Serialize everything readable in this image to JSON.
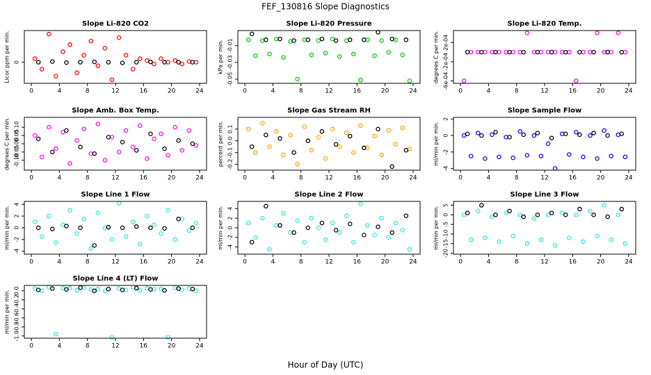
{
  "title": "FEF_130816  Slope Diagnostics",
  "xlabel": "Hour of Day (UTC)",
  "chart_data": [
    {
      "type": "scatter",
      "title": "Slope Li-820 CO2",
      "ylabel": "Licor ppm per min.",
      "xlim": [
        -1,
        25
      ],
      "xticks": [
        0,
        4,
        8,
        12,
        16,
        20,
        24
      ],
      "ylim": [
        -0.6,
        0.9
      ],
      "yticks": [
        0
      ],
      "series": [
        {
          "color": "#ff0000",
          "x": [
            0.5,
            1.5,
            2.5,
            3.5,
            4.5,
            5.5,
            6.5,
            7.5,
            8.5,
            9.5,
            10.5,
            11.5,
            12.5,
            13.5,
            14.5,
            15.5,
            16.5,
            17.5,
            18.5,
            19.5,
            20.5,
            21.5,
            22.5,
            23.5
          ],
          "values": [
            0.1,
            -0.2,
            0.8,
            -0.4,
            0.3,
            0.5,
            -0.3,
            0.2,
            0.6,
            -0.1,
            0.4,
            -0.5,
            0.7,
            0.2,
            -0.2,
            0.1,
            0.05,
            -0.05,
            0.1,
            0,
            0.05,
            -0.05,
            0.02,
            0
          ]
        },
        {
          "color": "#000000",
          "x": [
            1,
            3,
            5,
            7,
            9,
            11,
            13,
            15,
            17,
            19,
            21,
            23
          ],
          "values": [
            0,
            0.02,
            -0.01,
            0,
            0.01,
            0,
            -0.02,
            0,
            0.01,
            0,
            0,
            0
          ]
        }
      ]
    },
    {
      "type": "scatter",
      "title": "Slope Li-820 Pressure",
      "ylabel": "kPa per min.",
      "xlim": [
        -1,
        25
      ],
      "xticks": [
        0,
        4,
        8,
        12,
        16,
        20,
        24
      ],
      "ylim": [
        -0.055,
        0.008
      ],
      "yticks": [
        -0.05,
        -0.03,
        -0.01
      ],
      "series": [
        {
          "color": "#00cc00",
          "x": [
            0.5,
            1.5,
            2.5,
            3.5,
            4.5,
            5.5,
            6.5,
            7.5,
            8.5,
            9.5,
            10.5,
            11.5,
            12.5,
            13.5,
            14.5,
            15.5,
            16.5,
            17.5,
            18.5,
            19.5,
            20.5,
            21.5,
            22.5,
            23.5
          ],
          "values": [
            -0.003,
            -0.022,
            -0.004,
            -0.02,
            -0.002,
            -0.024,
            -0.005,
            -0.05,
            -0.003,
            -0.021,
            -0.004,
            -0.019,
            -0.002,
            -0.023,
            -0.004,
            -0.02,
            -0.051,
            -0.003,
            -0.022,
            -0.004,
            -0.018,
            -0.003,
            -0.021,
            -0.052
          ]
        },
        {
          "color": "#000000",
          "x": [
            1,
            3,
            5,
            7,
            9,
            11,
            13,
            15,
            17,
            19,
            21,
            23
          ],
          "values": [
            0.004,
            -0.003,
            -0.002,
            -0.004,
            -0.003,
            -0.002,
            -0.004,
            -0.003,
            -0.003,
            0.006,
            -0.002,
            -0.003
          ]
        }
      ]
    },
    {
      "type": "scatter",
      "title": "Slope Li-820 Temp.",
      "ylabel": "degrees C per min.",
      "xlim": [
        -1,
        25
      ],
      "xticks": [
        0,
        4,
        8,
        12,
        16,
        20,
        24
      ],
      "ylim": [
        -0.00065,
        0.00045
      ],
      "yticks": [
        {
          "value": -0.0006,
          "label": "-6e-04"
        },
        {
          "value": -0.0002,
          "label": "-2e-04"
        },
        {
          "value": 0.0002,
          "label": "2e-04"
        }
      ],
      "series": [
        {
          "color": "#ff00ff",
          "x": [
            0.5,
            1.5,
            2.5,
            3.5,
            4.5,
            5.5,
            6.5,
            7.5,
            8.5,
            9.5,
            10.5,
            11.5,
            12.5,
            13.5,
            14.5,
            15.5,
            16.5,
            17.5,
            18.5,
            19.5,
            20.5,
            21.5,
            22.5,
            23.5
          ],
          "values": [
            -0.0006,
            0,
            0,
            0,
            0,
            0,
            0,
            0,
            0,
            0.0004,
            0,
            0,
            0,
            0,
            0,
            0,
            -0.0006,
            0,
            0,
            0.0004,
            0,
            0,
            0.0004,
            0
          ]
        },
        {
          "color": "#000000",
          "x": [
            1,
            3,
            5,
            7,
            9,
            11,
            13,
            15,
            17,
            19,
            21,
            23
          ],
          "values": [
            0,
            0,
            0,
            0,
            0,
            0,
            0,
            0,
            0,
            0,
            0,
            0
          ]
        }
      ]
    },
    {
      "type": "scatter",
      "title": "Slope Amb. Box Temp.",
      "ylabel": "degrees C per min.",
      "xlim": [
        -1,
        25
      ],
      "xticks": [
        0,
        4,
        8,
        12,
        16,
        20,
        24
      ],
      "ylim": [
        -0.16,
        0.16
      ],
      "yticks": [
        {
          "value": -0.1,
          "label": "-0.10"
        },
        {
          "value": -0.05,
          "label": "-0.05"
        },
        {
          "value": 0,
          "label": "0.00"
        },
        {
          "value": 0.05,
          "label": "0.05"
        },
        {
          "value": 0.1,
          "label": "0.10"
        }
      ],
      "series": [
        {
          "color": "#ff00ff",
          "x": [
            0.5,
            1.5,
            2.5,
            3.5,
            4.5,
            5.5,
            6.5,
            7.5,
            8.5,
            9.5,
            10.5,
            11.5,
            12.5,
            13.5,
            14.5,
            15.5,
            16.5,
            17.5,
            18.5,
            19.5,
            20.5,
            21.5,
            22.5,
            23.5
          ],
          "values": [
            0.05,
            -0.08,
            0.1,
            -0.03,
            0.07,
            -0.12,
            0.02,
            0.09,
            -0.06,
            0.12,
            -0.1,
            0.04,
            -0.05,
            0.08,
            -0.02,
            0.11,
            -0.09,
            0.03,
            0.06,
            -0.07,
            0.1,
            -0.04,
            0.08,
            -0.01
          ]
        },
        {
          "color": "#000000",
          "x": [
            1,
            3,
            5,
            7,
            9,
            11,
            13,
            15,
            17,
            19,
            21,
            23
          ],
          "values": [
            0.03,
            -0.05,
            0.08,
            -0.02,
            -0.06,
            0.04,
            0.01,
            -0.04,
            0.06,
            -0.03,
            0.02,
            0
          ]
        }
      ]
    },
    {
      "type": "scatter",
      "title": "Slope Gas Stream RH",
      "ylabel": "percent per min.",
      "xlim": [
        -1,
        25
      ],
      "xticks": [
        0,
        4,
        8,
        12,
        16,
        20,
        24
      ],
      "ylim": [
        -0.25,
        0.2
      ],
      "yticks": [
        -0.2,
        -0.1,
        {
          "value": 0,
          "label": "0.0"
        },
        0.1
      ],
      "series": [
        {
          "color": "#ffa500",
          "x": [
            0.5,
            1.5,
            2.5,
            3.5,
            4.5,
            5.5,
            6.5,
            7.5,
            8.5,
            9.5,
            10.5,
            11.5,
            12.5,
            13.5,
            14.5,
            15.5,
            16.5,
            17.5,
            18.5,
            19.5,
            20.5,
            21.5,
            22.5,
            23.5
          ],
          "values": [
            0.1,
            -0.1,
            0.15,
            -0.05,
            0.08,
            -0.12,
            0.05,
            -0.2,
            0.12,
            -0.08,
            0.03,
            -0.15,
            0.1,
            -0.05,
            0.07,
            -0.1,
            0.13,
            -0.06,
            0.04,
            -0.12,
            0.09,
            -0.03,
            0.11,
            -0.07
          ]
        },
        {
          "color": "#000000",
          "x": [
            1,
            3,
            5,
            7,
            9,
            11,
            13,
            15,
            17,
            19,
            21,
            23
          ],
          "values": [
            -0.05,
            0.05,
            0.02,
            -0.1,
            0,
            0.08,
            -0.03,
            0.04,
            -0.06,
            0.1,
            -0.22,
            -0.08
          ]
        }
      ]
    },
    {
      "type": "scatter",
      "title": "Slope Sample Flow",
      "ylabel": "ml/min per min.",
      "xlim": [
        -1,
        25
      ],
      "xticks": [
        0,
        4,
        8,
        12,
        16,
        20,
        24
      ],
      "ylim": [
        -4.2,
        2.2
      ],
      "yticks": [
        -4,
        -2,
        0,
        2
      ],
      "series": [
        {
          "color": "#0000ff",
          "x": [
            0.5,
            1.5,
            2.5,
            3.5,
            4.5,
            5.5,
            6.5,
            7.5,
            8.5,
            9.5,
            10.5,
            11.5,
            12.5,
            13.5,
            14.5,
            15.5,
            16.5,
            17.5,
            18.5,
            19.5,
            20.5,
            21.5,
            22.5,
            23.5
          ],
          "values": [
            0,
            -2.5,
            0.3,
            -2.8,
            0.1,
            -2.6,
            -0.2,
            -2.7,
            0.5,
            -2.4,
            0,
            -2.5,
            -1,
            -4,
            0.2,
            -2.3,
            0.4,
            -2.6,
            0,
            -2.8,
            0.6,
            -2.5,
            0.1,
            -2.6
          ]
        },
        {
          "color": "#000000",
          "x": [
            1,
            3,
            5,
            7,
            9,
            11,
            13,
            15,
            17,
            19,
            21,
            23
          ],
          "values": [
            0.2,
            0,
            0.4,
            -0.2,
            0.1,
            0.3,
            -0.3,
            0.2,
            0.1,
            0.3,
            0,
            0.2
          ]
        }
      ]
    },
    {
      "type": "scatter",
      "title": "Slope Line 1 Flow",
      "ylabel": "ml/min per min.",
      "xlim": [
        -1,
        25
      ],
      "xticks": [
        0,
        4,
        8,
        12,
        16,
        20,
        24
      ],
      "ylim": [
        -4.5,
        4.5
      ],
      "yticks": [
        -4,
        -2,
        0,
        2,
        4
      ],
      "series": [
        {
          "color": "#33e6e6",
          "x": [
            0.5,
            1.5,
            2.5,
            3.5,
            4.5,
            5.5,
            6.5,
            7.5,
            8.5,
            9.5,
            10.5,
            11.5,
            12.5,
            13.5,
            14.5,
            15.5,
            16.5,
            17.5,
            18.5,
            19.5,
            20.5,
            21.5,
            22.5,
            23.5
          ],
          "values": [
            1,
            -1.5,
            2,
            -2.5,
            0.5,
            3,
            -1,
            1.5,
            -3.5,
            2.5,
            0,
            -2,
            4.2,
            -1.5,
            1,
            -2.8,
            2,
            0.5,
            -1,
            3,
            -2,
            1.5,
            -0.5,
            0.8
          ]
        },
        {
          "color": "#000000",
          "x": [
            1,
            3,
            5,
            7,
            9,
            11,
            13,
            15,
            17,
            19,
            21,
            23
          ],
          "values": [
            0,
            -0.2,
            0.3,
            0,
            -3,
            0.1,
            0,
            0.2,
            0,
            -0.1,
            1.5,
            0
          ]
        }
      ]
    },
    {
      "type": "scatter",
      "title": "Slope Line 2 Flow",
      "ylabel": "ml/min per min.",
      "xlim": [
        -1,
        25
      ],
      "xticks": [
        0,
        4,
        8,
        12,
        16,
        20,
        24
      ],
      "ylim": [
        -5.5,
        5.5
      ],
      "yticks": [
        -4,
        -2,
        0,
        2,
        4
      ],
      "series": [
        {
          "color": "#33e6e6",
          "x": [
            0.5,
            1.5,
            2.5,
            3.5,
            4.5,
            5.5,
            6.5,
            7.5,
            8.5,
            9.5,
            10.5,
            11.5,
            12.5,
            13.5,
            14.5,
            15.5,
            16.5,
            17.5,
            18.5,
            19.5,
            20.5,
            21.5,
            22.5,
            23.5
          ],
          "values": [
            1,
            -2,
            2,
            -4.5,
            0.5,
            3,
            -1,
            1.5,
            -3,
            2,
            0,
            -2.5,
            1,
            -1,
            2.5,
            -3,
            5,
            0.5,
            -1.5,
            2,
            -2,
            1,
            -0.5,
            -4.5
          ]
        },
        {
          "color": "#000000",
          "x": [
            1,
            3,
            5,
            7,
            9,
            11,
            13,
            15,
            17,
            19,
            21,
            23
          ],
          "values": [
            -3,
            4.5,
            0.5,
            -1,
            0,
            1,
            -0.5,
            0.8,
            -1.5,
            0.2,
            -1,
            2.5
          ]
        }
      ]
    },
    {
      "type": "scatter",
      "title": "Slope Line 3 Flow",
      "ylabel": "ml/min per min.",
      "xlim": [
        -1,
        25
      ],
      "xticks": [
        0,
        4,
        8,
        12,
        16,
        20,
        24
      ],
      "ylim": [
        -20.5,
        7
      ],
      "yticks": [
        -20,
        -15,
        -10,
        -5,
        0,
        5
      ],
      "series": [
        {
          "color": "#33e6e6",
          "x": [
            0.5,
            1.5,
            2.5,
            3.5,
            4.5,
            5.5,
            6.5,
            7.5,
            8.5,
            9.5,
            10.5,
            11.5,
            12.5,
            13.5,
            14.5,
            15.5,
            16.5,
            17.5,
            18.5,
            19.5,
            20.5,
            21.5,
            22.5,
            23.5
          ],
          "values": [
            0,
            -13,
            2,
            -12,
            -1,
            -14,
            1,
            -11,
            0,
            -15,
            -2,
            -13,
            0,
            -16,
            1,
            -12,
            0,
            -14,
            2,
            -11,
            5,
            -13,
            0,
            -15
          ]
        },
        {
          "color": "#000000",
          "x": [
            1,
            3,
            5,
            7,
            9,
            11,
            13,
            15,
            17,
            19,
            21,
            23
          ],
          "values": [
            1,
            5,
            0,
            2,
            -1,
            0,
            1,
            0,
            3,
            0,
            -1,
            3
          ]
        }
      ]
    },
    {
      "type": "scatter",
      "title": "Slope Line 4 (LT) Flow",
      "ylabel": "ml/min per min.",
      "xlim": [
        -1,
        25
      ],
      "xticks": [
        0,
        4,
        8,
        12,
        16,
        20,
        24
      ],
      "ylim": [
        -1.05,
        0.12
      ],
      "yticks": [
        {
          "value": -1,
          "label": "-1.0"
        },
        -0.8,
        -0.6,
        -0.4,
        -0.2,
        {
          "value": 0,
          "label": "0.0"
        }
      ],
      "series": [
        {
          "color": "#33e6e6",
          "x": [
            0.5,
            1.5,
            2.5,
            3.5,
            4.5,
            5.5,
            6.5,
            7.5,
            8.5,
            9.5,
            10.5,
            11.5,
            12.5,
            13.5,
            14.5,
            15.5,
            16.5,
            17.5,
            18.5,
            19.5,
            20.5,
            21.5,
            22.5,
            23.5
          ],
          "values": [
            0.05,
            0,
            0.08,
            -0.96,
            0.06,
            0.06,
            0.01,
            0.07,
            0.03,
            0.04,
            0,
            -1.03,
            0.05,
            0.02,
            0.08,
            0.01,
            0.06,
            0.03,
            0.04,
            -1.03,
            0.07,
            0.02,
            0.05,
            0
          ]
        },
        {
          "color": "#000000",
          "x": [
            1,
            3,
            5,
            7,
            9,
            11,
            13,
            15,
            17,
            19,
            21,
            23
          ],
          "values": [
            0.02,
            0.05,
            0.03,
            0.07,
            0,
            0.04,
            0.02,
            0.06,
            0.03,
            0.01,
            0.05,
            0.04
          ]
        }
      ]
    }
  ]
}
